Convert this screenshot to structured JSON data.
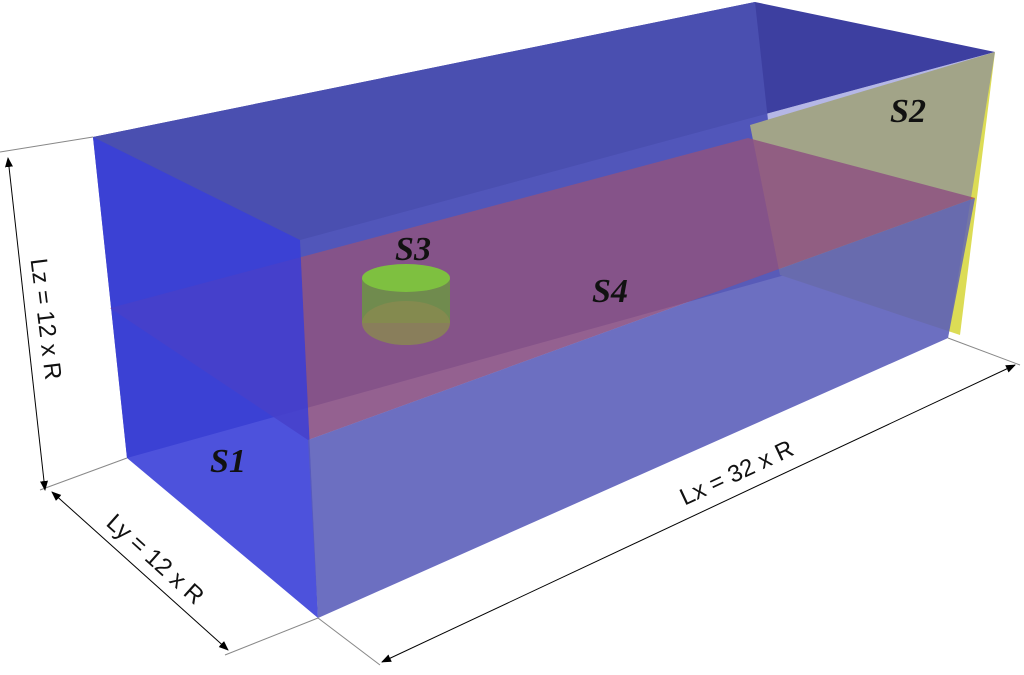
{
  "surfaces": [
    {
      "label": "S1"
    },
    {
      "label": "S2"
    },
    {
      "label": "S3"
    },
    {
      "label": "S4"
    }
  ],
  "dimensions": {
    "lx": "Lx = 32 x R",
    "ly": "Ly = 12 x R",
    "lz": "Lz = 12 x R"
  }
}
